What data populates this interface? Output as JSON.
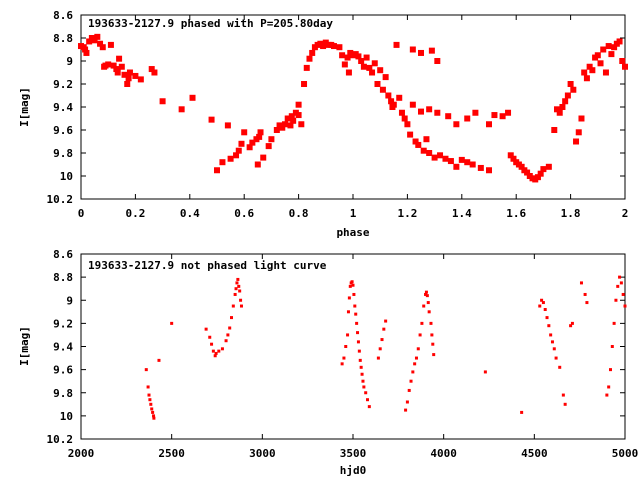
{
  "chart_data": [
    {
      "type": "scatter",
      "title": "193633-2127.9 phased with P=205.80day",
      "xlabel": "phase",
      "ylabel": "I[mag]",
      "xlim": [
        0,
        2
      ],
      "ylim": [
        8.6,
        10.2
      ],
      "y_inverted": true,
      "grid": false,
      "marker": "filled-square",
      "color": "#ff0000",
      "x_ticks": [
        "0",
        "0.2",
        "0.4",
        "0.6",
        "0.8",
        "1",
        "1.2",
        "1.4",
        "1.6",
        "1.8",
        "2"
      ],
      "y_ticks": [
        "8.6",
        "8.8",
        "9",
        "9.2",
        "9.4",
        "9.6",
        "9.8",
        "10",
        "10.2"
      ],
      "points": [
        [
          0.0,
          8.87
        ],
        [
          0.01,
          8.88
        ],
        [
          0.015,
          8.9
        ],
        [
          0.02,
          8.93
        ],
        [
          0.03,
          8.83
        ],
        [
          0.04,
          8.8
        ],
        [
          0.05,
          8.82
        ],
        [
          0.06,
          8.79
        ],
        [
          0.07,
          8.85
        ],
        [
          0.08,
          8.88
        ],
        [
          0.085,
          9.05
        ],
        [
          0.09,
          9.04
        ],
        [
          0.1,
          9.03
        ],
        [
          0.11,
          8.86
        ],
        [
          0.12,
          9.04
        ],
        [
          0.13,
          9.07
        ],
        [
          0.135,
          9.1
        ],
        [
          0.14,
          8.98
        ],
        [
          0.15,
          9.05
        ],
        [
          0.16,
          9.12
        ],
        [
          0.17,
          9.2
        ],
        [
          0.175,
          9.15
        ],
        [
          0.18,
          9.1
        ],
        [
          0.2,
          9.13
        ],
        [
          0.22,
          9.16
        ],
        [
          0.26,
          9.07
        ],
        [
          0.27,
          9.1
        ],
        [
          0.3,
          9.35
        ],
        [
          0.37,
          9.42
        ],
        [
          0.41,
          9.32
        ],
        [
          0.48,
          9.51
        ],
        [
          0.5,
          9.95
        ],
        [
          0.52,
          9.88
        ],
        [
          0.54,
          9.56
        ],
        [
          0.55,
          9.85
        ],
        [
          0.57,
          9.82
        ],
        [
          0.58,
          9.78
        ],
        [
          0.59,
          9.72
        ],
        [
          0.6,
          9.62
        ],
        [
          0.62,
          9.75
        ],
        [
          0.63,
          9.71
        ],
        [
          0.645,
          9.68
        ],
        [
          0.65,
          9.9
        ],
        [
          0.655,
          9.66
        ],
        [
          0.66,
          9.62
        ],
        [
          0.67,
          9.84
        ],
        [
          0.69,
          9.74
        ],
        [
          0.7,
          9.68
        ],
        [
          0.72,
          9.6
        ],
        [
          0.73,
          9.56
        ],
        [
          0.74,
          9.58
        ],
        [
          0.75,
          9.55
        ],
        [
          0.76,
          9.5
        ],
        [
          0.77,
          9.56
        ],
        [
          0.775,
          9.48
        ],
        [
          0.78,
          9.52
        ],
        [
          0.79,
          9.45
        ],
        [
          0.8,
          9.38
        ],
        [
          0.81,
          9.55
        ],
        [
          0.8,
          9.47
        ],
        [
          0.82,
          9.2
        ],
        [
          0.83,
          9.06
        ],
        [
          0.84,
          8.98
        ],
        [
          0.85,
          8.93
        ],
        [
          0.86,
          8.88
        ],
        [
          0.87,
          8.86
        ],
        [
          0.88,
          8.85
        ],
        [
          0.89,
          8.87
        ],
        [
          0.9,
          8.84
        ],
        [
          0.91,
          8.86
        ],
        [
          0.92,
          8.86
        ],
        [
          0.93,
          8.87
        ],
        [
          0.95,
          8.88
        ],
        [
          0.96,
          8.95
        ],
        [
          0.97,
          9.03
        ],
        [
          0.98,
          8.97
        ],
        [
          0.985,
          9.1
        ],
        [
          0.99,
          8.93
        ],
        [
          1.0,
          8.95
        ],
        [
          1.01,
          8.94
        ],
        [
          1.02,
          8.96
        ],
        [
          1.03,
          9.0
        ],
        [
          1.04,
          9.05
        ],
        [
          1.05,
          8.97
        ],
        [
          1.06,
          9.06
        ],
        [
          1.07,
          9.1
        ],
        [
          1.08,
          9.02
        ],
        [
          1.09,
          9.2
        ],
        [
          1.1,
          9.08
        ],
        [
          1.11,
          9.25
        ],
        [
          1.12,
          9.14
        ],
        [
          1.13,
          9.3
        ],
        [
          1.14,
          9.35
        ],
        [
          1.145,
          9.4
        ],
        [
          1.15,
          9.38
        ],
        [
          1.16,
          8.86
        ],
        [
          1.17,
          9.32
        ],
        [
          1.18,
          9.45
        ],
        [
          1.19,
          9.5
        ],
        [
          1.2,
          9.55
        ],
        [
          1.21,
          9.64
        ],
        [
          1.22,
          8.9
        ],
        [
          1.23,
          9.7
        ],
        [
          1.24,
          9.73
        ],
        [
          1.25,
          8.93
        ],
        [
          1.26,
          9.78
        ],
        [
          1.27,
          9.68
        ],
        [
          1.28,
          9.8
        ],
        [
          1.29,
          8.91
        ],
        [
          1.3,
          9.84
        ],
        [
          1.31,
          9.0
        ],
        [
          1.32,
          9.82
        ],
        [
          1.34,
          9.85
        ],
        [
          1.36,
          9.87
        ],
        [
          1.38,
          9.92
        ],
        [
          1.4,
          9.86
        ],
        [
          1.42,
          9.88
        ],
        [
          1.44,
          9.9
        ],
        [
          1.47,
          9.93
        ],
        [
          1.5,
          9.95
        ],
        [
          1.22,
          9.38
        ],
        [
          1.25,
          9.44
        ],
        [
          1.28,
          9.42
        ],
        [
          1.31,
          9.45
        ],
        [
          1.35,
          9.48
        ],
        [
          1.38,
          9.55
        ],
        [
          1.42,
          9.5
        ],
        [
          1.45,
          9.45
        ],
        [
          1.5,
          9.55
        ],
        [
          1.52,
          9.47
        ],
        [
          1.55,
          9.48
        ],
        [
          1.57,
          9.45
        ],
        [
          1.58,
          9.82
        ],
        [
          1.59,
          9.85
        ],
        [
          1.6,
          9.88
        ],
        [
          1.61,
          9.9
        ],
        [
          1.62,
          9.92
        ],
        [
          1.63,
          9.95
        ],
        [
          1.64,
          9.97
        ],
        [
          1.65,
          10.0
        ],
        [
          1.66,
          10.02
        ],
        [
          1.67,
          10.03
        ],
        [
          1.68,
          10.01
        ],
        [
          1.69,
          9.98
        ],
        [
          1.7,
          9.94
        ],
        [
          1.72,
          9.92
        ],
        [
          1.74,
          9.6
        ],
        [
          1.75,
          9.42
        ],
        [
          1.76,
          9.45
        ],
        [
          1.77,
          9.4
        ],
        [
          1.78,
          9.35
        ],
        [
          1.79,
          9.3
        ],
        [
          1.8,
          9.2
        ],
        [
          1.81,
          9.25
        ],
        [
          1.82,
          9.7
        ],
        [
          1.83,
          9.62
        ],
        [
          1.84,
          9.5
        ],
        [
          1.85,
          9.1
        ],
        [
          1.86,
          9.15
        ],
        [
          1.87,
          9.05
        ],
        [
          1.88,
          9.08
        ],
        [
          1.89,
          8.97
        ],
        [
          1.9,
          8.95
        ],
        [
          1.91,
          9.02
        ],
        [
          1.92,
          8.9
        ],
        [
          1.93,
          9.1
        ],
        [
          1.94,
          8.87
        ],
        [
          1.95,
          8.94
        ],
        [
          1.96,
          8.88
        ],
        [
          1.97,
          8.85
        ],
        [
          1.98,
          8.83
        ],
        [
          1.99,
          9.0
        ],
        [
          2.0,
          9.05
        ]
      ]
    },
    {
      "type": "scatter",
      "title": "193633-2127.9 not phased light curve",
      "xlabel": "hjd0",
      "ylabel": "I[mag]",
      "xlim": [
        2000,
        5000
      ],
      "ylim": [
        8.6,
        10.2
      ],
      "y_inverted": true,
      "grid": false,
      "marker": "small-square",
      "color": "#ff0000",
      "x_ticks": [
        "2000",
        "2500",
        "3000",
        "3500",
        "4000",
        "4500",
        "5000"
      ],
      "y_ticks": [
        "8.6",
        "8.8",
        "9",
        "9.2",
        "9.4",
        "9.6",
        "9.8",
        "10",
        "10.2"
      ],
      "points": [
        [
          2360,
          9.6
        ],
        [
          2370,
          9.75
        ],
        [
          2375,
          9.82
        ],
        [
          2380,
          9.86
        ],
        [
          2385,
          9.9
        ],
        [
          2390,
          9.94
        ],
        [
          2395,
          9.97
        ],
        [
          2400,
          10.0
        ],
        [
          2402,
          10.02
        ],
        [
          2430,
          9.52
        ],
        [
          2500,
          9.2
        ],
        [
          2690,
          9.25
        ],
        [
          2710,
          9.32
        ],
        [
          2720,
          9.38
        ],
        [
          2730,
          9.44
        ],
        [
          2740,
          9.48
        ],
        [
          2745,
          9.46
        ],
        [
          2760,
          9.44
        ],
        [
          2780,
          9.42
        ],
        [
          2800,
          9.35
        ],
        [
          2810,
          9.3
        ],
        [
          2820,
          9.24
        ],
        [
          2830,
          9.15
        ],
        [
          2840,
          9.05
        ],
        [
          2850,
          8.95
        ],
        [
          2855,
          8.9
        ],
        [
          2860,
          8.85
        ],
        [
          2865,
          8.82
        ],
        [
          2870,
          8.88
        ],
        [
          2875,
          8.92
        ],
        [
          2880,
          9.0
        ],
        [
          2885,
          9.05
        ],
        [
          3440,
          9.55
        ],
        [
          3450,
          9.5
        ],
        [
          3460,
          9.4
        ],
        [
          3470,
          9.3
        ],
        [
          3475,
          9.1
        ],
        [
          3480,
          8.98
        ],
        [
          3485,
          8.88
        ],
        [
          3490,
          8.85
        ],
        [
          3495,
          8.84
        ],
        [
          3500,
          8.87
        ],
        [
          3505,
          8.95
        ],
        [
          3510,
          9.05
        ],
        [
          3515,
          9.12
        ],
        [
          3520,
          9.2
        ],
        [
          3525,
          9.28
        ],
        [
          3530,
          9.36
        ],
        [
          3535,
          9.44
        ],
        [
          3540,
          9.52
        ],
        [
          3545,
          9.58
        ],
        [
          3550,
          9.64
        ],
        [
          3555,
          9.7
        ],
        [
          3560,
          9.75
        ],
        [
          3570,
          9.8
        ],
        [
          3580,
          9.86
        ],
        [
          3590,
          9.92
        ],
        [
          3640,
          9.5
        ],
        [
          3650,
          9.42
        ],
        [
          3660,
          9.34
        ],
        [
          3670,
          9.25
        ],
        [
          3680,
          9.18
        ],
        [
          3790,
          9.95
        ],
        [
          3800,
          9.88
        ],
        [
          3810,
          9.78
        ],
        [
          3820,
          9.7
        ],
        [
          3830,
          9.62
        ],
        [
          3840,
          9.55
        ],
        [
          3850,
          9.5
        ],
        [
          3860,
          9.42
        ],
        [
          3870,
          9.3
        ],
        [
          3880,
          9.2
        ],
        [
          3890,
          9.05
        ],
        [
          3900,
          8.95
        ],
        [
          3905,
          8.93
        ],
        [
          3910,
          8.96
        ],
        [
          3915,
          9.02
        ],
        [
          3920,
          9.1
        ],
        [
          3930,
          9.2
        ],
        [
          3935,
          9.3
        ],
        [
          3940,
          9.38
        ],
        [
          3945,
          9.47
        ],
        [
          4230,
          9.62
        ],
        [
          4430,
          9.97
        ],
        [
          4530,
          9.05
        ],
        [
          4540,
          9.0
        ],
        [
          4550,
          9.02
        ],
        [
          4560,
          9.08
        ],
        [
          4570,
          9.15
        ],
        [
          4580,
          9.22
        ],
        [
          4590,
          9.3
        ],
        [
          4600,
          9.36
        ],
        [
          4610,
          9.42
        ],
        [
          4620,
          9.5
        ],
        [
          4640,
          9.58
        ],
        [
          4660,
          9.82
        ],
        [
          4670,
          9.9
        ],
        [
          4700,
          9.22
        ],
        [
          4710,
          9.2
        ],
        [
          4760,
          8.85
        ],
        [
          4780,
          8.95
        ],
        [
          4790,
          9.02
        ],
        [
          4900,
          9.82
        ],
        [
          4910,
          9.75
        ],
        [
          4920,
          9.6
        ],
        [
          4930,
          9.4
        ],
        [
          4940,
          9.2
        ],
        [
          4950,
          9.0
        ],
        [
          4960,
          8.88
        ],
        [
          4970,
          8.8
        ],
        [
          4980,
          8.85
        ],
        [
          4990,
          8.95
        ],
        [
          5000,
          9.05
        ]
      ]
    }
  ]
}
